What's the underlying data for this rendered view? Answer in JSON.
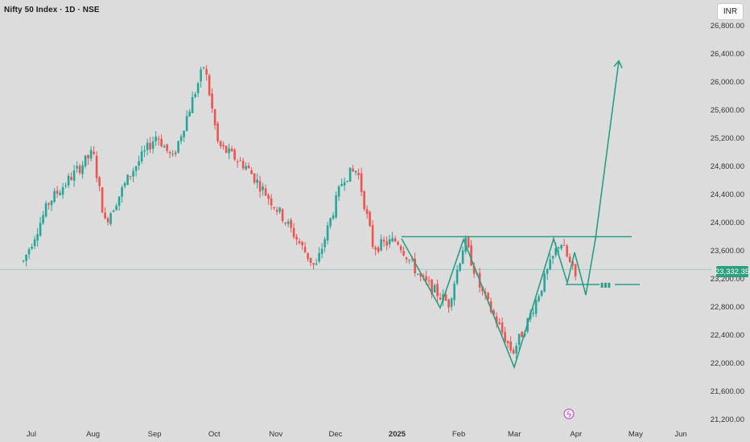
{
  "header": {
    "title": "Nifty 50 Index · 1D · NSE"
  },
  "currency_button": "INR",
  "current_price_label": "23,332.35",
  "chart_data": {
    "type": "candlestick",
    "title": "Nifty 50 Index · 1D · NSE",
    "y_ticks": [
      "26,800.00",
      "26,400.00",
      "26,000.00",
      "25,600.00",
      "25,200.00",
      "24,800.00",
      "24,400.00",
      "24,000.00",
      "23,600.00",
      "23,200.00",
      "22,800.00",
      "22,400.00",
      "22,000.00",
      "21,600.00",
      "21,200.00"
    ],
    "x_ticks": [
      "Jul",
      "Aug",
      "Sep",
      "Oct",
      "Nov",
      "Dec",
      "2025",
      "Feb",
      "Mar",
      "Apr",
      "May",
      "Jun"
    ],
    "ylim": [
      21000,
      27000
    ],
    "current_price": 23332.35,
    "colors": {
      "up": "#26a69a",
      "down": "#ef5350",
      "drawing": "#2a9d84",
      "background": "#dcdcdc"
    },
    "price_path": [
      [
        "Jun 27",
        23450
      ],
      [
        "Jul 10",
        24300
      ],
      [
        "Aug 1",
        25000
      ],
      [
        "Aug 7",
        24000
      ],
      [
        "Aug 20",
        24700
      ],
      [
        "Sep 2",
        25250
      ],
      [
        "Sep 10",
        24900
      ],
      [
        "Sep 26",
        26250
      ],
      [
        "Oct 3",
        25100
      ],
      [
        "Oct 17",
        24800
      ],
      [
        "Nov 4",
        24100
      ],
      [
        "Nov 21",
        23350
      ],
      [
        "Dec 5",
        24650
      ],
      [
        "Dec 12",
        24750
      ],
      [
        "Dec 20",
        23650
      ],
      [
        "Jan 1",
        23750
      ],
      [
        "Jan 13",
        23200
      ],
      [
        "Jan 27",
        22850
      ],
      [
        "Feb 4",
        23750
      ],
      [
        "Feb 12",
        23050
      ],
      [
        "Feb 28",
        22150
      ],
      [
        "Mar 7",
        22550
      ],
      [
        "Mar 24",
        23750
      ],
      [
        "Apr 1",
        23200
      ]
    ],
    "annotations": {
      "neckline_price": 23800,
      "target_arrow_price": 26300,
      "pattern": "inverse head and shoulders with projected breakout"
    }
  }
}
